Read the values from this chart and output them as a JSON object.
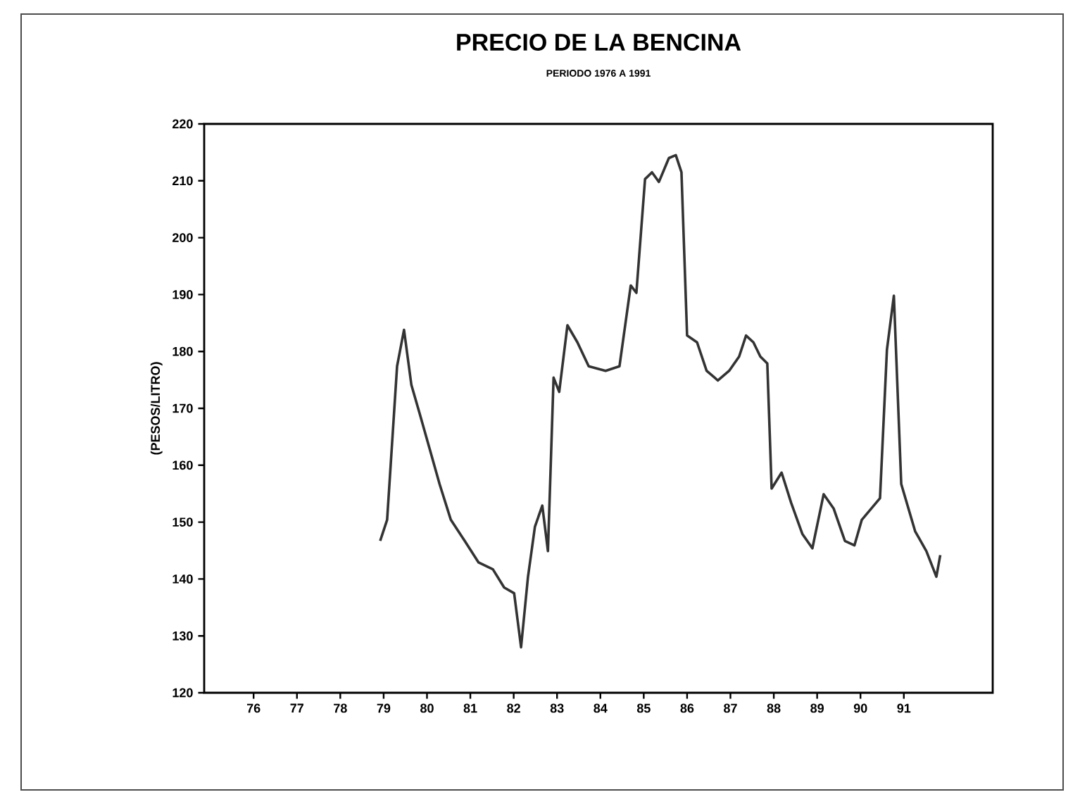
{
  "chart_data": {
    "type": "line",
    "title": "PRECIO DE LA BENCINA",
    "subtitle": "PERIODO 1976 A 1991",
    "ylabel": "(PESOS/LITRO)",
    "xlim": [
      1974.86,
      1993.05
    ],
    "ylim": [
      120,
      220
    ],
    "xticks": [
      {
        "value": 1976,
        "label": "76"
      },
      {
        "value": 1977,
        "label": "77"
      },
      {
        "value": 1978,
        "label": "78"
      },
      {
        "value": 1979,
        "label": "79"
      },
      {
        "value": 1980,
        "label": "80"
      },
      {
        "value": 1981,
        "label": "81"
      },
      {
        "value": 1982,
        "label": "82"
      },
      {
        "value": 1983,
        "label": "83"
      },
      {
        "value": 1984,
        "label": "84"
      },
      {
        "value": 1985,
        "label": "85"
      },
      {
        "value": 1986,
        "label": "86"
      },
      {
        "value": 1987,
        "label": "87"
      },
      {
        "value": 1988,
        "label": "88"
      },
      {
        "value": 1989,
        "label": "89"
      },
      {
        "value": 1990,
        "label": "90"
      },
      {
        "value": 1991,
        "label": "91"
      }
    ],
    "yticks": [
      120,
      130,
      140,
      150,
      160,
      170,
      180,
      190,
      200,
      210,
      220
    ],
    "grid": false,
    "marker": "none",
    "line_style": "solid",
    "series": [
      {
        "color": "#333333",
        "x": [
          1978.92,
          1979.08,
          1979.31,
          1979.47,
          1979.64,
          1979.83,
          1980.06,
          1980.29,
          1980.55,
          1980.87,
          1981.19,
          1981.52,
          1981.78,
          1982.01,
          1982.17,
          1982.33,
          1982.49,
          1982.66,
          1982.79,
          1982.92,
          1983.05,
          1983.24,
          1983.47,
          1983.73,
          1984.12,
          1984.44,
          1984.7,
          1984.83,
          1985.03,
          1985.19,
          1985.35,
          1985.58,
          1985.74,
          1985.87,
          1986.0,
          1986.23,
          1986.45,
          1986.71,
          1986.97,
          1987.2,
          1987.36,
          1987.53,
          1987.69,
          1987.85,
          1987.95,
          1988.18,
          1988.4,
          1988.66,
          1988.89,
          1989.15,
          1989.38,
          1989.64,
          1989.86,
          1990.03,
          1990.45,
          1990.61,
          1990.77,
          1990.94,
          1991.26,
          1991.52,
          1991.75,
          1991.84
        ],
        "values": [
          146.7,
          150.4,
          177.4,
          183.8,
          174.1,
          169.1,
          162.9,
          156.7,
          150.4,
          146.7,
          142.9,
          141.7,
          138.5,
          137.5,
          128.0,
          140.4,
          149.2,
          152.9,
          144.9,
          175.4,
          172.9,
          184.6,
          181.6,
          177.4,
          176.6,
          177.4,
          191.6,
          190.3,
          210.3,
          211.5,
          209.8,
          214.0,
          214.5,
          211.5,
          182.8,
          181.6,
          176.6,
          174.9,
          176.6,
          179.1,
          182.8,
          181.6,
          179.1,
          177.9,
          155.9,
          158.7,
          153.4,
          147.9,
          145.4,
          154.9,
          152.4,
          146.7,
          145.9,
          150.4,
          154.2,
          180.3,
          189.8,
          156.7,
          148.4,
          144.9,
          140.4,
          144.2
        ]
      }
    ]
  }
}
